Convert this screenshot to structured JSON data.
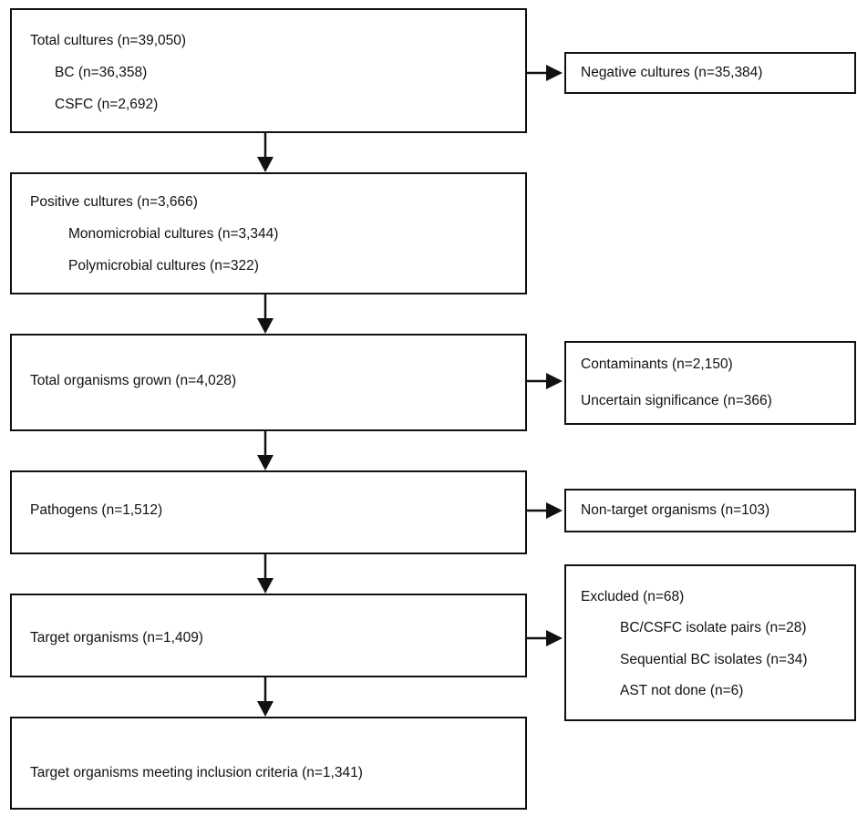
{
  "main_boxes": [
    {
      "lines": [
        "Total cultures (n=39,050)",
        "BC (n=36,358)",
        "CSFC (n=2,692)"
      ]
    },
    {
      "lines": [
        "Positive cultures (n=3,666)",
        "Monomicrobial cultures (n=3,344)",
        "Polymicrobial cultures (n=322)"
      ]
    },
    {
      "lines": [
        "Total organisms grown (n=4,028)"
      ]
    },
    {
      "lines": [
        "Pathogens (n=1,512)"
      ]
    },
    {
      "lines": [
        "Target organisms (n=1,409)"
      ]
    },
    {
      "lines": [
        "Target organisms meeting inclusion criteria (n=1,341)"
      ]
    }
  ],
  "side_boxes": [
    {
      "lines": [
        "Negative cultures (n=35,384)"
      ]
    },
    {
      "lines": [
        "Contaminants (n=2,150)",
        "Uncertain significance (n=366)"
      ]
    },
    {
      "lines": [
        "Non-target organisms (n=103)"
      ]
    },
    {
      "lines": [
        "Excluded (n=68)",
        "BC/CSFC isolate pairs (n=28)",
        "Sequential BC isolates (n=34)",
        "AST not done (n=6)"
      ]
    }
  ]
}
